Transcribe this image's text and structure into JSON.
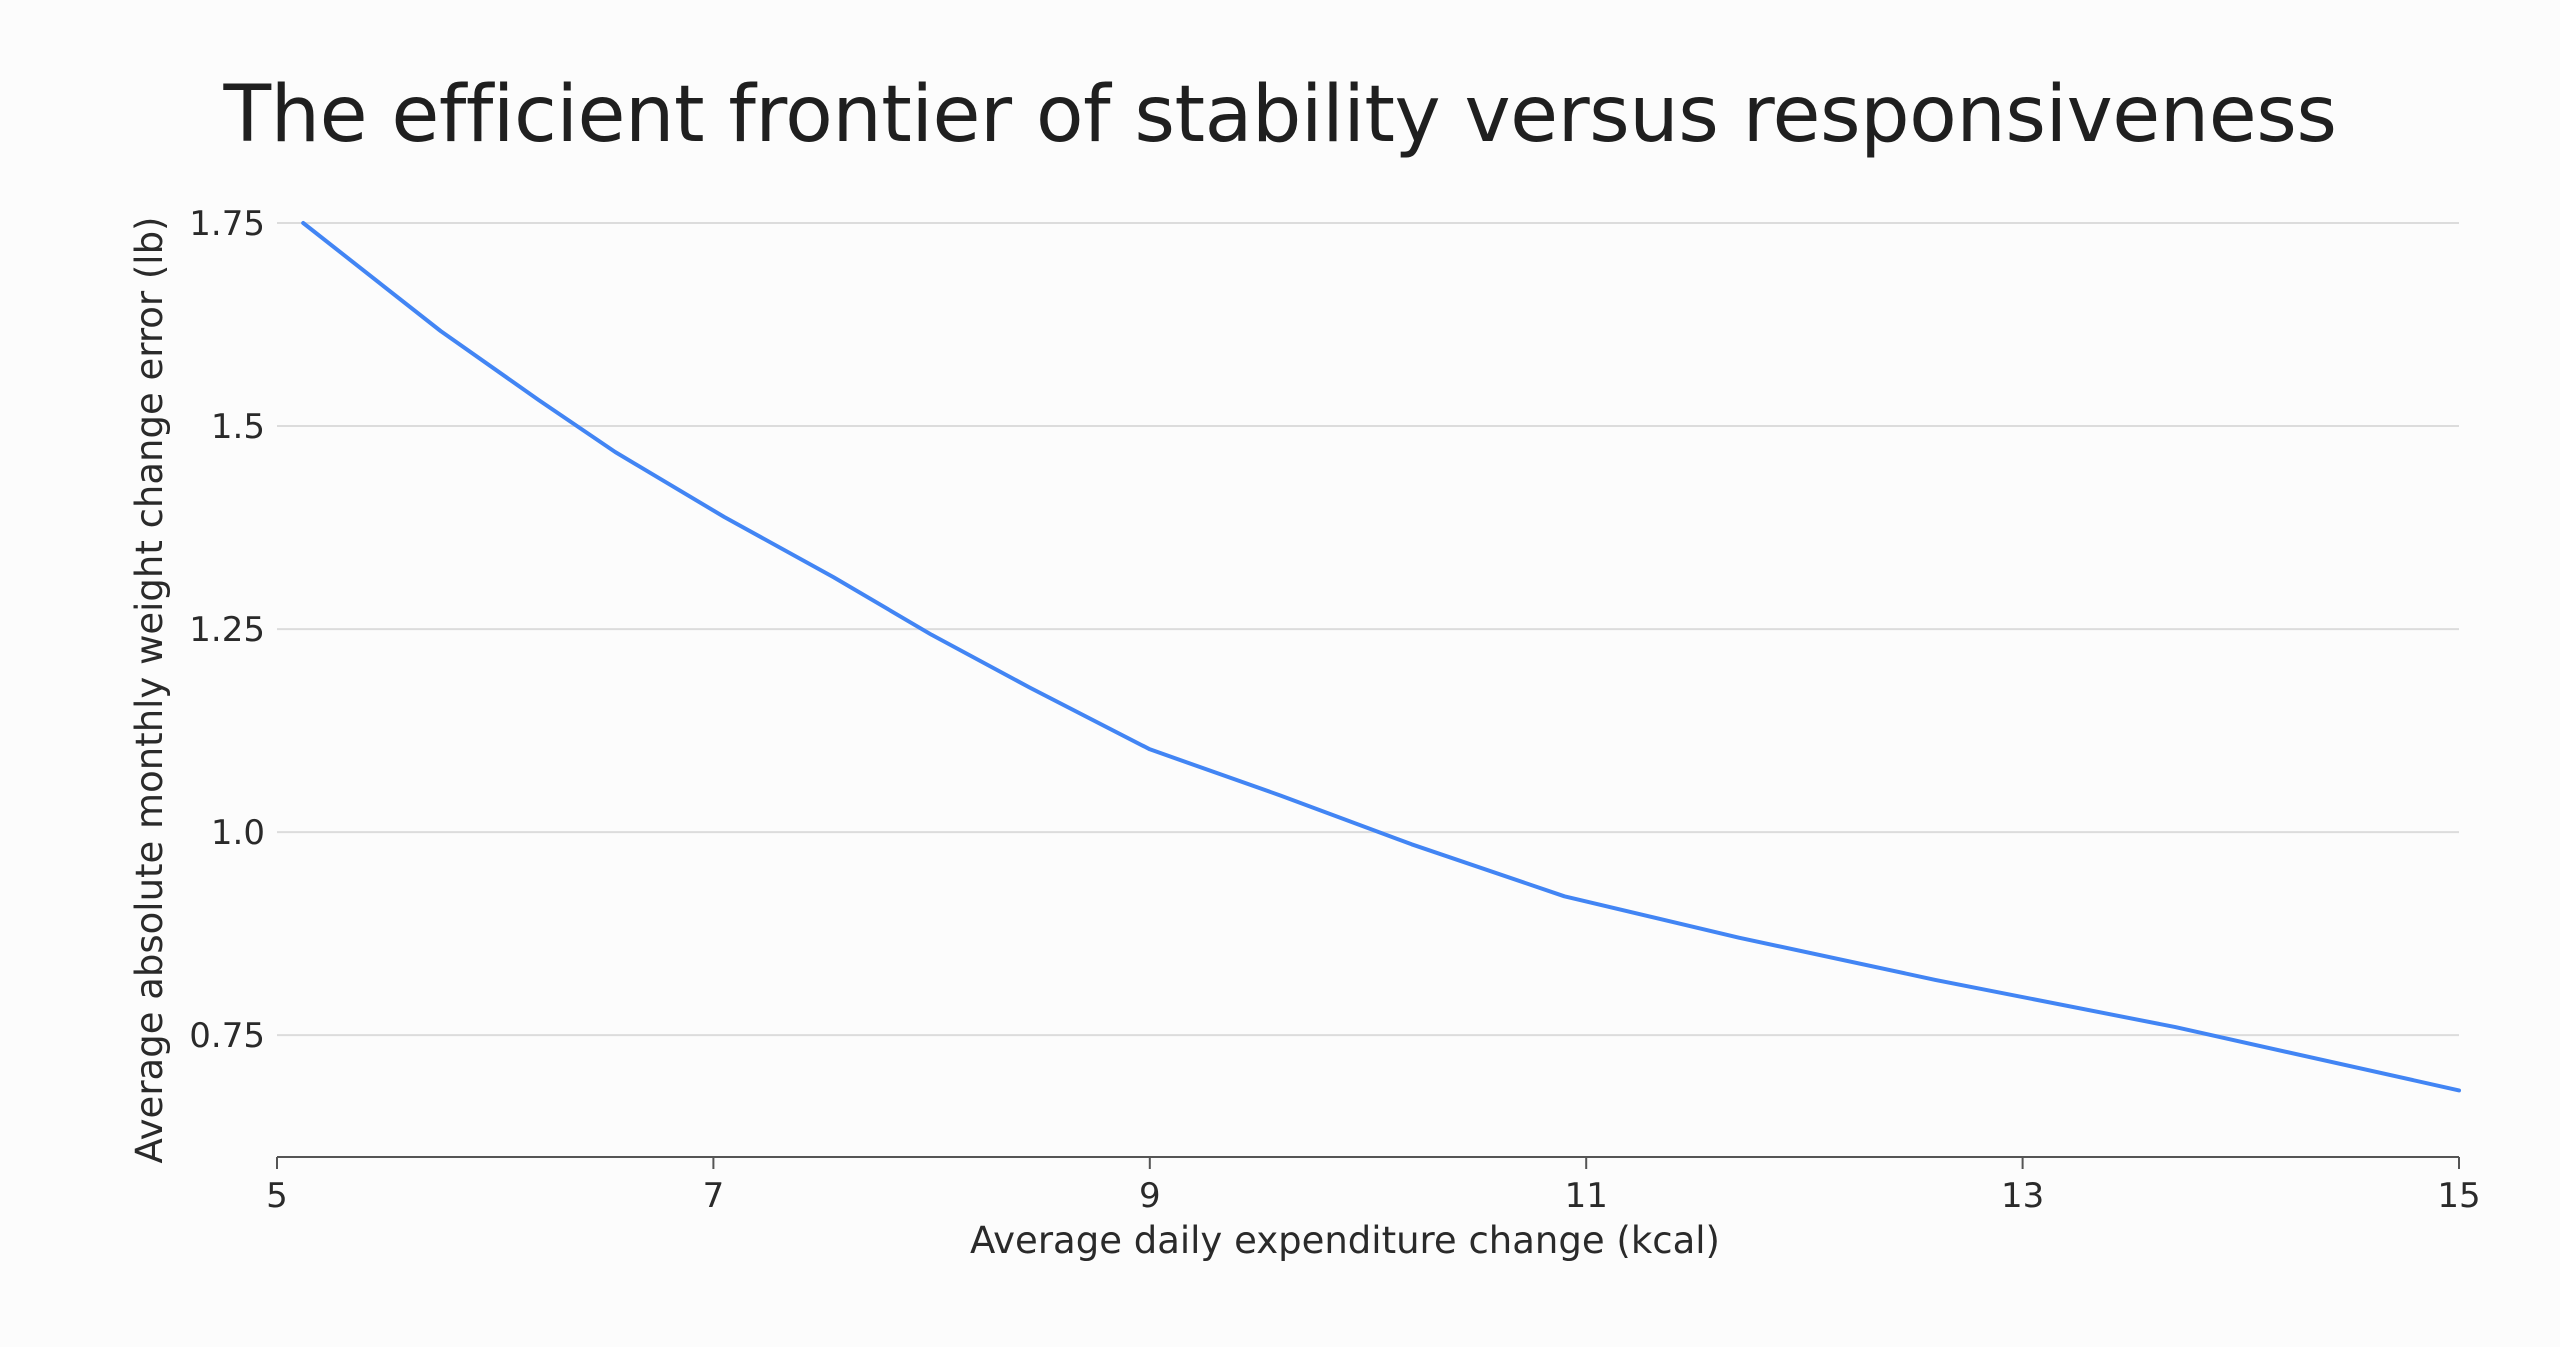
{
  "chart_data": {
    "type": "line",
    "title": "The efficient frontier of stability versus responsiveness",
    "xlabel": "Average daily expenditure change (kcal)",
    "ylabel": "Average absolute monthly weight change error (lb)",
    "xlim": [
      5,
      15
    ],
    "ylim": [
      0.6,
      1.75
    ],
    "xticks": [
      5,
      7,
      9,
      11,
      13,
      15
    ],
    "xtick_labels": [
      "5",
      "7",
      "9",
      "11",
      "13",
      "15"
    ],
    "yticks": [
      0.75,
      1.0,
      1.25,
      1.5,
      1.75
    ],
    "ytick_labels": [
      "0.75",
      "1.0",
      "1.25",
      "1.5",
      "1.75"
    ],
    "grid": true,
    "legend": "none",
    "series": [
      {
        "color": "#4285f4",
        "x": [
          5.12,
          5.75,
          6.2,
          6.55,
          7.05,
          7.55,
          8.0,
          8.45,
          9.0,
          9.6,
          10.2,
          10.9,
          11.7,
          12.6,
          13.7,
          15.0
        ],
        "y": [
          1.75,
          1.617,
          1.532,
          1.468,
          1.388,
          1.314,
          1.243,
          1.178,
          1.102,
          1.045,
          0.985,
          0.921,
          0.87,
          0.818,
          0.76,
          0.682
        ]
      }
    ]
  }
}
